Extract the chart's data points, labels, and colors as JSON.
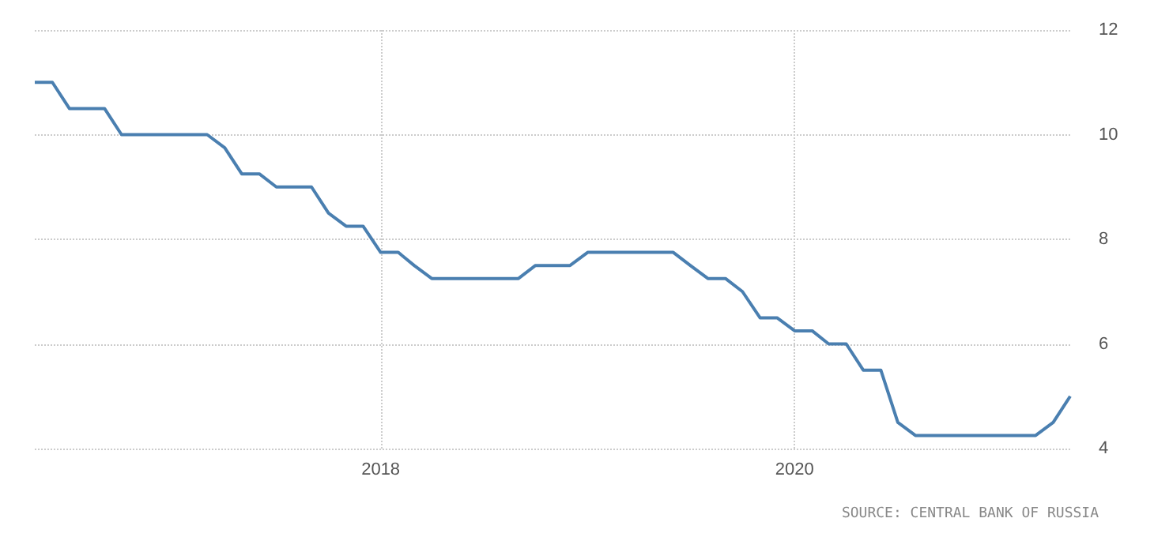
{
  "chart_data": {
    "type": "line",
    "x": [
      "2016-05",
      "2016-06",
      "2016-07",
      "2016-08",
      "2016-09",
      "2016-10",
      "2016-11",
      "2016-12",
      "2017-01",
      "2017-02",
      "2017-03",
      "2017-04",
      "2017-05",
      "2017-06",
      "2017-07",
      "2017-08",
      "2017-09",
      "2017-10",
      "2017-11",
      "2017-12",
      "2018-01",
      "2018-02",
      "2018-03",
      "2018-04",
      "2018-05",
      "2018-06",
      "2018-07",
      "2018-08",
      "2018-09",
      "2018-10",
      "2018-11",
      "2018-12",
      "2019-01",
      "2019-02",
      "2019-03",
      "2019-04",
      "2019-05",
      "2019-06",
      "2019-07",
      "2019-08",
      "2019-09",
      "2019-10",
      "2019-11",
      "2019-12",
      "2020-01",
      "2020-02",
      "2020-03",
      "2020-04",
      "2020-05",
      "2020-06",
      "2020-07",
      "2020-08",
      "2020-09",
      "2020-10",
      "2020-11",
      "2020-12",
      "2021-01",
      "2021-02",
      "2021-03",
      "2021-04",
      "2021-05"
    ],
    "series": [
      {
        "color": "#4a7fb0",
        "values": [
          11,
          11,
          10.5,
          10.5,
          10.5,
          10,
          10,
          10,
          10,
          10,
          10,
          9.75,
          9.25,
          9.25,
          9,
          9,
          9,
          8.5,
          8.25,
          8.25,
          7.75,
          7.75,
          7.5,
          7.25,
          7.25,
          7.25,
          7.25,
          7.25,
          7.25,
          7.5,
          7.5,
          7.5,
          7.75,
          7.75,
          7.75,
          7.75,
          7.75,
          7.75,
          7.5,
          7.25,
          7.25,
          7,
          6.5,
          6.5,
          6.25,
          6.25,
          6,
          6,
          5.5,
          5.5,
          4.5,
          4.25,
          4.25,
          4.25,
          4.25,
          4.25,
          4.25,
          4.25,
          4.25,
          4.5,
          5
        ]
      }
    ],
    "xlim": [
      "2016-05",
      "2021-05"
    ],
    "xticks": [
      "2018",
      "2020"
    ],
    "ylim": [
      4,
      12
    ],
    "yticks": [
      4,
      6,
      8,
      10,
      12
    ],
    "grid": true,
    "marker": "none",
    "line_style": "solid",
    "annotations": [
      "SOURCE: CENTRAL BANK OF RUSSIA"
    ]
  }
}
